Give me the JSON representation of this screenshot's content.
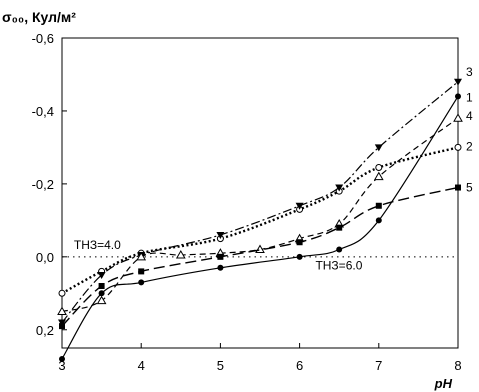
{
  "chart_data": {
    "type": "line",
    "ylabel": "σ₀₀, Кул/м²",
    "xlabel": "pH",
    "xlim": [
      3,
      8
    ],
    "ylim": [
      0.25,
      -0.6
    ],
    "y_inverted": true,
    "grid": false,
    "x_ticks": [
      "3",
      "4",
      "5",
      "6",
      "7",
      "8"
    ],
    "y_ticks": [
      "-0,6",
      "-0,4",
      "-0,2",
      "0,0",
      "0,2"
    ],
    "y_tick_values": [
      -0.6,
      -0.4,
      -0.2,
      0.0,
      0.2
    ],
    "annotations": [
      {
        "text": "ТНЗ=4.0",
        "x": 3.15,
        "y": -0.022
      },
      {
        "text": "ТНЗ=6.0",
        "x": 6.2,
        "y": 0.035
      }
    ],
    "zero_line": {
      "y": 0.0,
      "style": "dotted"
    },
    "series": [
      {
        "name": "1",
        "marker": "circle-filled",
        "line": "solid",
        "color": "#000000",
        "x": [
          3,
          3.5,
          4,
          5,
          6,
          6.5,
          7,
          8
        ],
        "y": [
          0.28,
          0.1,
          0.07,
          0.03,
          0.0,
          -0.02,
          -0.1,
          -0.44
        ]
      },
      {
        "name": "2",
        "marker": "circle-open",
        "line": "dotted-bold",
        "color": "#000000",
        "x": [
          3,
          3.5,
          4,
          5,
          6,
          6.5,
          7,
          8
        ],
        "y": [
          0.1,
          0.04,
          -0.01,
          -0.05,
          -0.13,
          -0.18,
          -0.245,
          -0.3
        ]
      },
      {
        "name": "3",
        "marker": "triangle-down-filled",
        "line": "dashdot",
        "color": "#000000",
        "x": [
          3,
          3.5,
          4,
          5,
          6,
          6.5,
          7,
          8
        ],
        "y": [
          0.18,
          0.05,
          -0.005,
          -0.06,
          -0.14,
          -0.19,
          -0.3,
          -0.48
        ]
      },
      {
        "name": "4",
        "marker": "triangle-open",
        "line": "dashed",
        "color": "#000000",
        "x": [
          3,
          3.5,
          4,
          4.5,
          5,
          5.5,
          6,
          6.5,
          7,
          8
        ],
        "y": [
          0.15,
          0.12,
          0.0,
          -0.005,
          -0.01,
          -0.02,
          -0.05,
          -0.09,
          -0.22,
          -0.38
        ]
      },
      {
        "name": "5",
        "marker": "square-filled",
        "line": "longdash",
        "color": "#000000",
        "x": [
          3,
          3.5,
          4,
          5,
          6,
          6.5,
          7,
          8
        ],
        "y": [
          0.19,
          0.08,
          0.04,
          0.0,
          -0.04,
          -0.08,
          -0.14,
          -0.19
        ]
      }
    ]
  }
}
